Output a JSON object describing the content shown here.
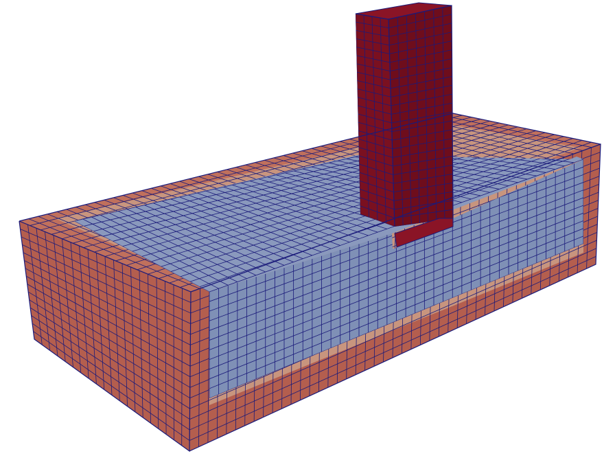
{
  "scene": {
    "background": "#ffffff",
    "colors": {
      "outer_shell": "#b45e4e",
      "outer_shell_top": "#c0705c",
      "transition_band": "#c8957e",
      "transition_band_dark": "#a87a70",
      "soil_interior": "#8a99bd",
      "soil_interior_dark": "#7a8aaf",
      "pile": "#7a1020",
      "pile_inner": "#650b1a",
      "mesh_lines": "#1a1a7a"
    }
  }
}
